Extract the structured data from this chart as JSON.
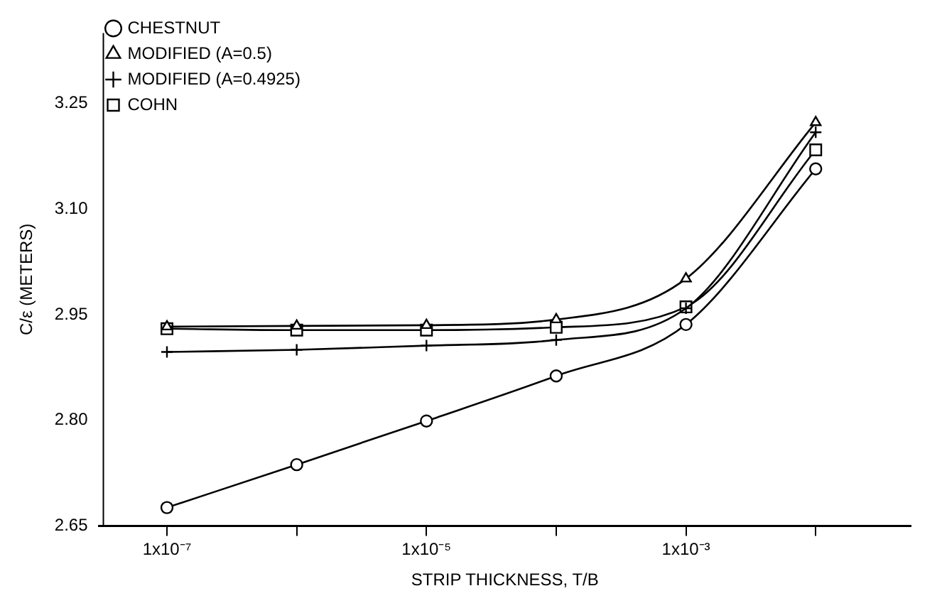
{
  "chart_data": {
    "type": "line",
    "xlabel": "STRIP THICKNESS, T/B",
    "ylabel": "C/ε (METERS)",
    "x": [
      1e-07,
      1e-06,
      1e-05,
      0.0001,
      0.001,
      0.01
    ],
    "series": [
      {
        "name": "CHESTNUT",
        "color": "#000000",
        "marker": "circle",
        "values": [
          2.676,
          2.737,
          2.799,
          2.863,
          2.936,
          3.157
        ]
      },
      {
        "name": "MODIFIED (A=0.5)",
        "color": "#000000",
        "marker": "triangle",
        "values": [
          2.933,
          2.934,
          2.935,
          2.943,
          3.001,
          3.223
        ]
      },
      {
        "name": "MODIFIED (A=0.4925)",
        "color": "#000000",
        "marker": "cross",
        "values": [
          2.897,
          2.9,
          2.906,
          2.914,
          2.959,
          3.209
        ]
      },
      {
        "name": "COHN",
        "color": "#000000",
        "marker": "square",
        "values": [
          2.93,
          2.928,
          2.928,
          2.932,
          2.961,
          3.184
        ]
      }
    ],
    "log": "x",
    "xlim": [
      3.4e-08,
      0.054
    ],
    "xticks": [
      {
        "value": 1e-07,
        "label": "1x10⁻⁷"
      },
      {
        "value": 1e-06,
        "label": null
      },
      {
        "value": 1e-05,
        "label": "1x10⁻⁵"
      },
      {
        "value": 0.0001,
        "label": null
      },
      {
        "value": 0.001,
        "label": "1x10⁻³"
      },
      {
        "value": 0.01,
        "label": null
      }
    ],
    "ylim": [
      2.65,
      3.35
    ],
    "yticks": [
      2.65,
      {
        "value": 2.8,
        "label": "2.80"
      },
      2.95,
      {
        "value": 3.1,
        "label": "3.10"
      },
      3.25
    ],
    "grid": false,
    "legend": "top left",
    "line_style": "solid"
  }
}
